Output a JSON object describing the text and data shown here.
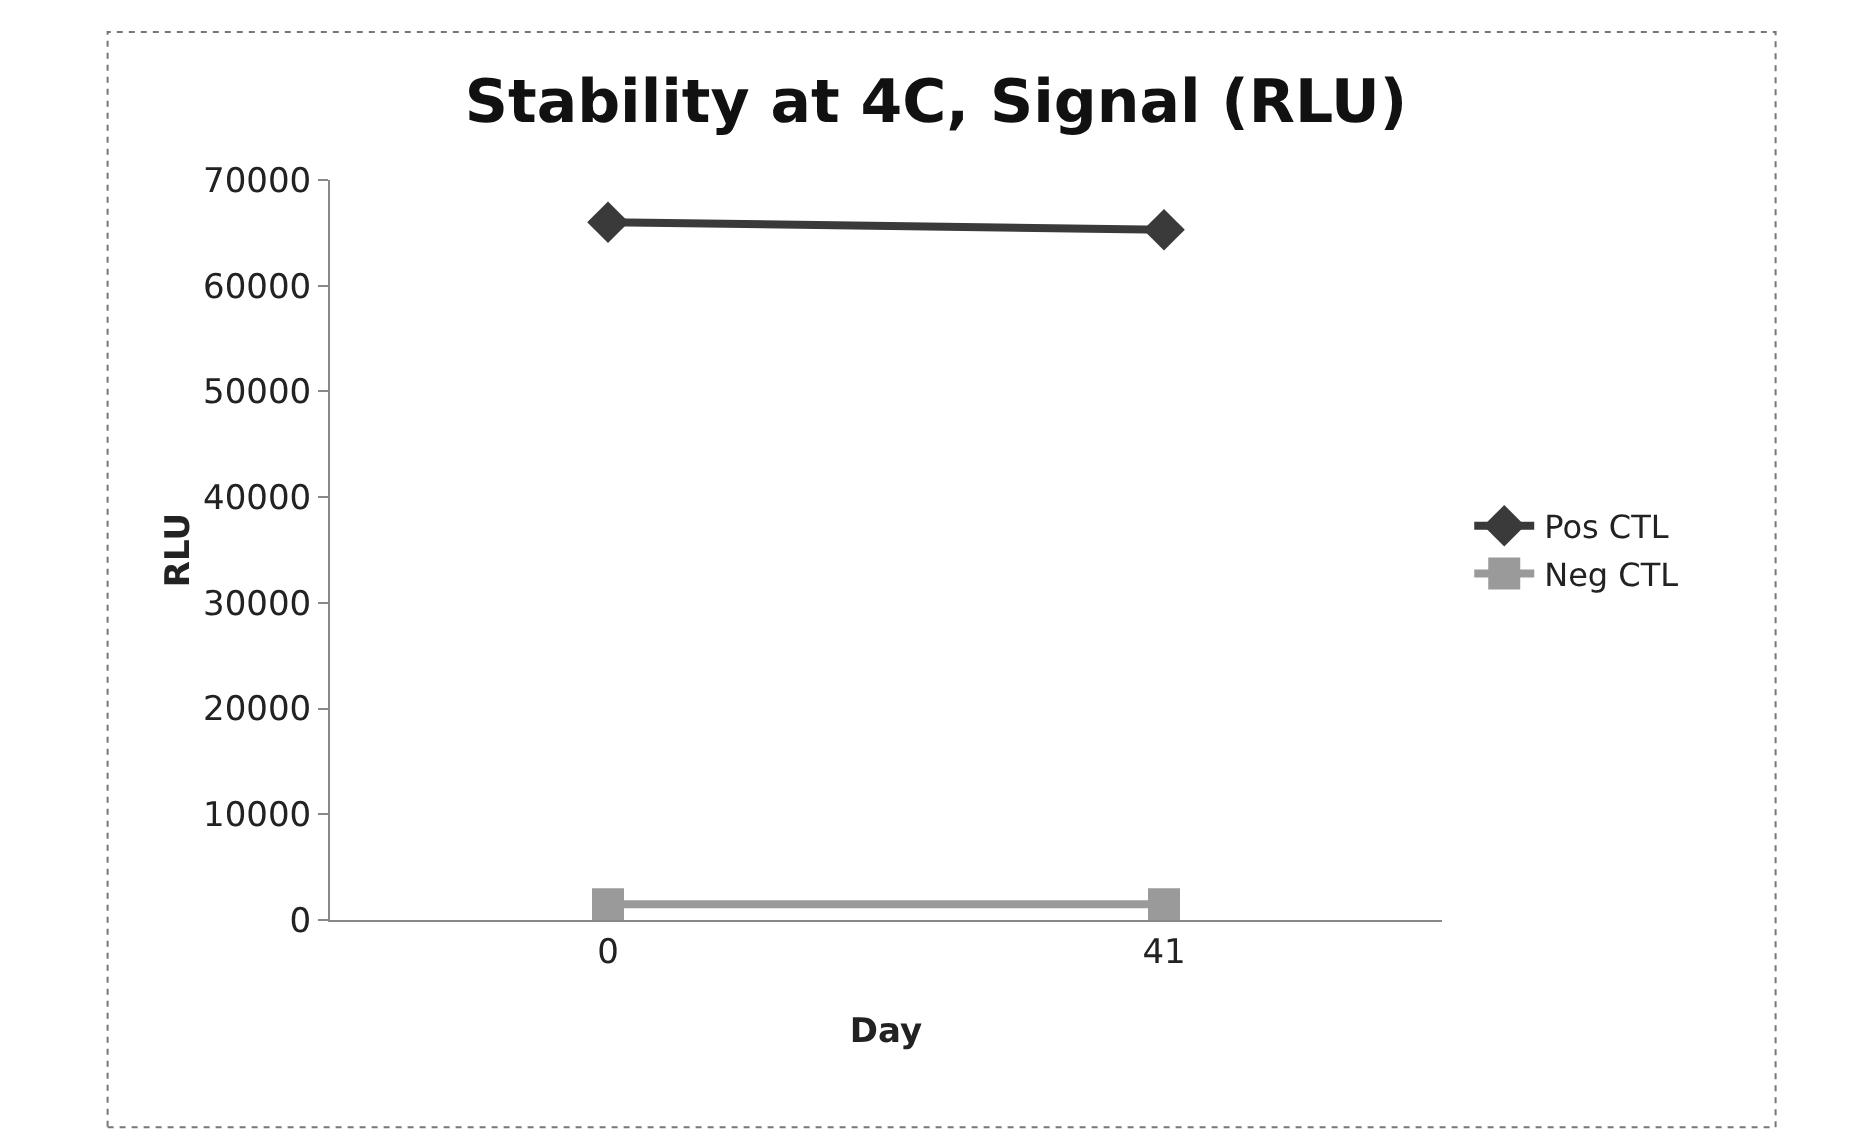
{
  "chart_data": {
    "type": "line",
    "title": "Stability at 4C, Signal (RLU)",
    "xlabel": "Day",
    "ylabel": "RLU",
    "categories": [
      "0",
      "41"
    ],
    "series": [
      {
        "name": "Pos CTL",
        "color": "#3a3a3a",
        "values": [
          66000,
          65300
        ],
        "marker": "diamond"
      },
      {
        "name": "Neg CTL",
        "color": "#9a9a9a",
        "values": [
          1500,
          1500
        ],
        "marker": "square"
      }
    ],
    "ylim": [
      0,
      70000
    ],
    "yticks": [
      0,
      10000,
      20000,
      30000,
      40000,
      50000,
      60000,
      70000
    ],
    "grid": false,
    "legend": "right"
  }
}
